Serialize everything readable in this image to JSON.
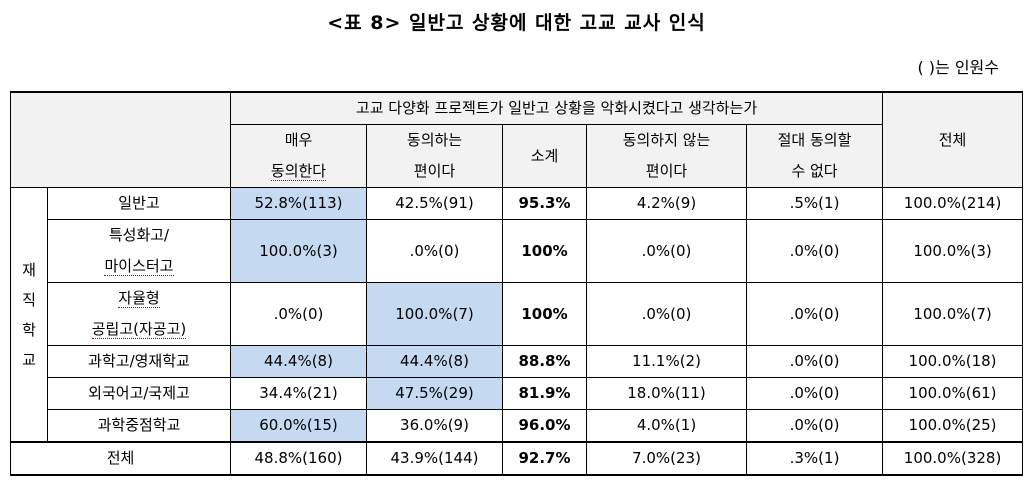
{
  "title": "<표 8> 일반고 상황에 대한 고교 교사 인식",
  "note": "( )는 인원수",
  "header": {
    "question": "고교 다양화 프로젝트가 일반고 상황을 악화시켰다고 생각하는가",
    "col1_line1": "매우",
    "col1_line2": "동의한다",
    "col2_line1": "동의하는",
    "col2_line2": "편이다",
    "col3": "소계",
    "col4_line1": "동의하지 않는",
    "col4_line2": "편이다",
    "col5_line1": "절대 동의할",
    "col5_line2": "수 없다",
    "col6": "전체"
  },
  "group_label": [
    "재",
    "직",
    "학",
    "교"
  ],
  "rows": [
    {
      "label": "일반고",
      "c1": "52.8%(113)",
      "c2": "42.5%(91)",
      "c3": "95.3%",
      "c4": "4.2%(9)",
      "c5": ".5%(1)",
      "c6": "100.0%(214)"
    },
    {
      "label_line1": "특성화고/",
      "label_line2": "마이스터고",
      "c1": "100.0%(3)",
      "c2": ".0%(0)",
      "c3": "100%",
      "c4": ".0%(0)",
      "c5": ".0%(0)",
      "c6": "100.0%(3)"
    },
    {
      "label_line1": "자율형",
      "label_line2": "공립고(자공고)",
      "c1": ".0%(0)",
      "c2": "100.0%(7)",
      "c3": "100%",
      "c4": ".0%(0)",
      "c5": ".0%(0)",
      "c6": "100.0%(7)"
    },
    {
      "label": "과학고/영재학교",
      "c1": "44.4%(8)",
      "c2": "44.4%(8)",
      "c3": "88.8%",
      "c4": "11.1%(2)",
      "c5": ".0%(0)",
      "c6": "100.0%(18)"
    },
    {
      "label": "외국어고/국제고",
      "c1": "34.4%(21)",
      "c2": "47.5%(29)",
      "c3": "81.9%",
      "c4": "18.0%(11)",
      "c5": ".0%(0)",
      "c6": "100.0%(61)"
    },
    {
      "label": "과학중점학교",
      "c1": "60.0%(15)",
      "c2": "36.0%(9)",
      "c3": "96.0%",
      "c4": "4.0%(1)",
      "c5": ".0%(0)",
      "c6": "100.0%(25)"
    }
  ],
  "total": {
    "label": "전체",
    "c1": "48.8%(160)",
    "c2": "43.9%(144)",
    "c3": "92.7%",
    "c4": "7.0%(23)",
    "c5": ".3%(1)",
    "c6": "100.0%(328)"
  },
  "colors": {
    "highlight": "#c5d9f1",
    "header_bg": "#f2f2f2"
  }
}
